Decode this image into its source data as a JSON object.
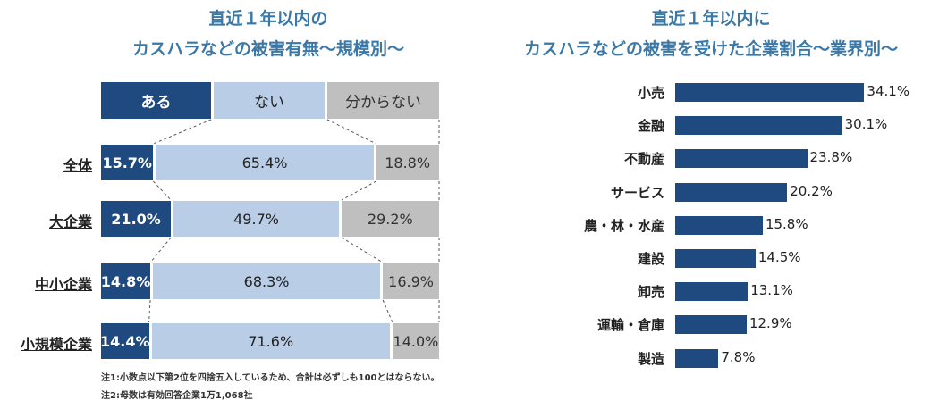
{
  "chart_data": [
    {
      "type": "bar",
      "stacked": true,
      "title_line1": "直近１年以内の",
      "title_line2": "カスハラなどの被害有無～規模別～",
      "legend": [
        "ある",
        "ない",
        "分からない"
      ],
      "categories": [
        "全体",
        "大企業",
        "中小企業",
        "小規模企業"
      ],
      "series": [
        {
          "name": "ある",
          "values": [
            15.7,
            21.0,
            14.8,
            14.4
          ],
          "labels": [
            "15.7%",
            "21.0%",
            "14.8%",
            "14.4%"
          ],
          "color": "#1f4a7f"
        },
        {
          "name": "ない",
          "values": [
            65.4,
            49.7,
            68.3,
            71.6
          ],
          "labels": [
            "65.4%",
            "49.7%",
            "68.3%",
            "71.6%"
          ],
          "color": "#b9cde6"
        },
        {
          "name": "分からない",
          "values": [
            18.8,
            29.2,
            16.9,
            14.0
          ],
          "labels": [
            "18.8%",
            "29.2%",
            "16.9%",
            "14.0%"
          ],
          "color": "#bfbfbf"
        }
      ],
      "notes": [
        "注1:小数点以下第2位を四捨五入しているため、合計は必ずしも100とはならない。",
        "注2:母数は有効回答企業1万1,068社"
      ]
    },
    {
      "type": "bar",
      "orientation": "horizontal",
      "title_line1": "直近１年以内に",
      "title_line2": "カスハラなどの被害を受けた企業割合～業界別～",
      "categories": [
        "小売",
        "金融",
        "不動産",
        "サービス",
        "農・林・水産",
        "建設",
        "卸売",
        "運輸・倉庫",
        "製造"
      ],
      "values": [
        34.1,
        30.1,
        23.8,
        20.2,
        15.8,
        14.5,
        13.1,
        12.9,
        7.8
      ],
      "labels": [
        "34.1%",
        "30.1%",
        "23.8%",
        "20.2%",
        "15.8%",
        "14.5%",
        "13.1%",
        "12.9%",
        "7.8%"
      ],
      "color": "#1f4a7f"
    }
  ]
}
